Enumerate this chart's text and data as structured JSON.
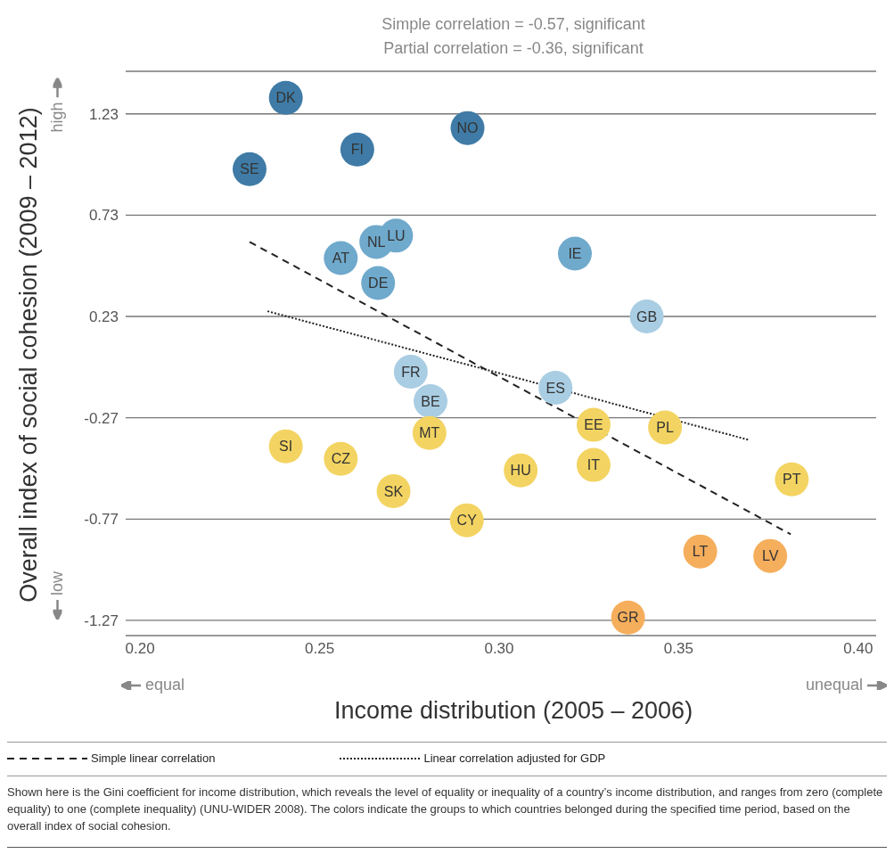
{
  "chart_data": {
    "type": "scatter",
    "title": "Simple correlation = -0.57, significant",
    "subtitle": "Partial correlation = -0.36, significant",
    "xlabel": "Income distribution (2005 – 2006)",
    "ylabel": "Overall index of social cohesion (2009 – 2012)",
    "xlim": [
      0.196,
      0.405
    ],
    "xticks": [
      {
        "value": 0.2,
        "label": "0.20"
      },
      {
        "value": 0.25,
        "label": "0.25"
      },
      {
        "value": 0.3,
        "label": "0.30"
      },
      {
        "value": 0.35,
        "label": "0.35"
      },
      {
        "value": 0.4,
        "label": "0.40"
      }
    ],
    "ylim": [
      -1.345,
      1.44
    ],
    "yticks": [
      -1.27,
      -0.77,
      -0.27,
      0.23,
      0.73,
      1.23
    ],
    "grid": "y",
    "legend": "bottom",
    "marker": "circle",
    "series": [
      {
        "color": "#3f7ba6",
        "x": [
          0.2406,
          0.2912,
          0.2605,
          0.2305
        ],
        "values": [
          1.309,
          1.16,
          1.054,
          0.957
        ],
        "value_labels": [
          "DK",
          "NO",
          "FI",
          "SE"
        ]
      },
      {
        "color": "#6fa9cc",
        "x": [
          0.2713,
          0.2658,
          0.2559,
          0.2663,
          0.3211
        ],
        "values": [
          0.629,
          0.598,
          0.518,
          0.395,
          0.54
        ],
        "value_labels": [
          "LU",
          "NL",
          "AT",
          "DE",
          "IE"
        ]
      },
      {
        "color": "#a9cde3",
        "x": [
          0.3411,
          0.2754,
          0.3157,
          0.2809
        ],
        "values": [
          0.23,
          -0.043,
          -0.122,
          -0.188
        ],
        "value_labels": [
          "GB",
          "FR",
          "ES",
          "BE"
        ]
      },
      {
        "color": "#f3d462",
        "x": [
          0.3263,
          0.3462,
          0.2806,
          0.2406,
          0.2559,
          0.306,
          0.3263,
          0.3815,
          0.2706,
          0.291
        ],
        "values": [
          -0.305,
          -0.318,
          -0.345,
          -0.411,
          -0.473,
          -0.53,
          -0.503,
          -0.574,
          -0.632,
          -0.776
        ],
        "value_labels": [
          "EE",
          "PL",
          "MT",
          "SI",
          "CZ",
          "HU",
          "IT",
          "PT",
          "SK",
          "CY"
        ]
      },
      {
        "color": "#f5ae5c",
        "x": [
          0.356,
          0.3755,
          0.3359
        ],
        "values": [
          -0.93,
          -0.952,
          -1.256
        ],
        "value_labels": [
          "LT",
          "LV",
          "GR"
        ]
      },
      {
        "type": "line",
        "name": "Simple linear correlation",
        "color": "#222222",
        "marker": "none",
        "line_style": "dashed",
        "x": [
          0.2305,
          0.3812
        ],
        "values": [
          0.598,
          -0.845
        ]
      },
      {
        "type": "line",
        "name": "Linear correlation adjusted for GDP",
        "color": "#222222",
        "marker": "none",
        "line_style": "dotted",
        "x": [
          0.2355,
          0.3697
        ],
        "values": [
          0.256,
          -0.38
        ]
      }
    ],
    "annotations": [
      "high",
      "low",
      "equal",
      "unequal",
      "Shown here is the Gini coefficient for income distribution, which reveals the level of equality or inequality of a country’s income distribution, and ranges from zero (complete equality) to one (complete inequality) (UNU-WIDER 2008). The colors indicate the groups to which countries belonged during the specified time period, based on the overall index of social cohesion."
    ]
  }
}
